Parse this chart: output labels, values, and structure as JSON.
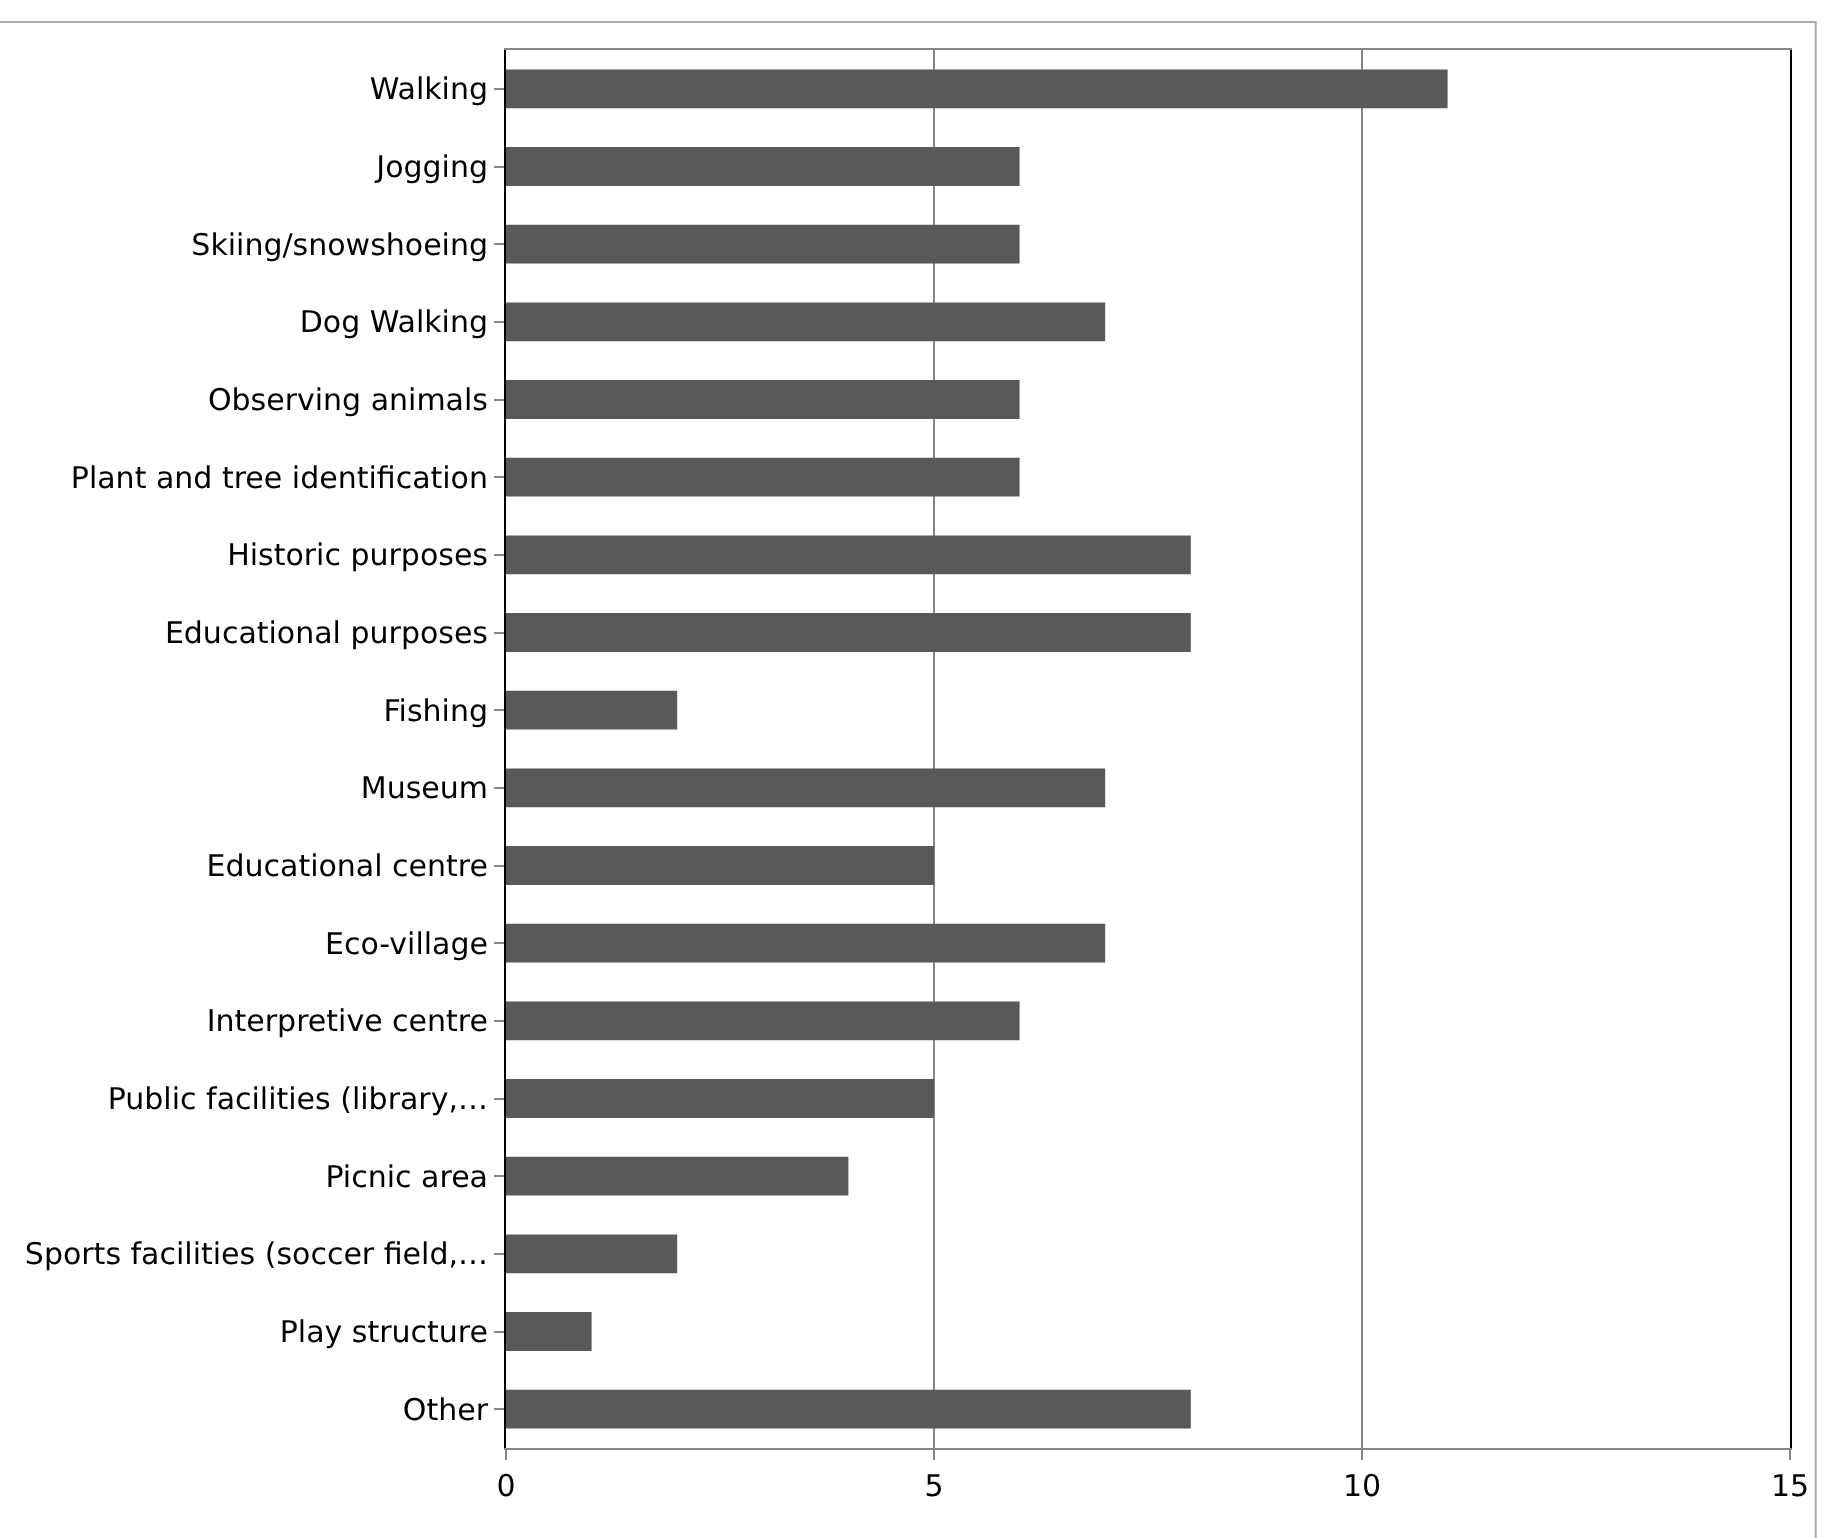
{
  "chart_data": {
    "type": "bar",
    "orientation": "horizontal",
    "categories": [
      "Walking",
      "Jogging",
      "Skiing/snowshoeing",
      "Dog Walking",
      "Observing animals",
      "Plant and tree identification",
      "Historic purposes",
      "Educational purposes",
      "Fishing",
      "Museum",
      "Educational centre",
      "Eco-village",
      "Interpretive centre",
      "Public facilities (library,…",
      "Picnic area",
      "Sports facilities (soccer field,…",
      "Play structure",
      "Other"
    ],
    "values": [
      11,
      6,
      6,
      7,
      6,
      6,
      8,
      8,
      2,
      7,
      5,
      7,
      6,
      5,
      4,
      2,
      1,
      8
    ],
    "color": "#595959",
    "xlim": [
      0,
      15
    ],
    "xticks": [
      0,
      5,
      10,
      15
    ],
    "grid": "x",
    "legend": false
  }
}
